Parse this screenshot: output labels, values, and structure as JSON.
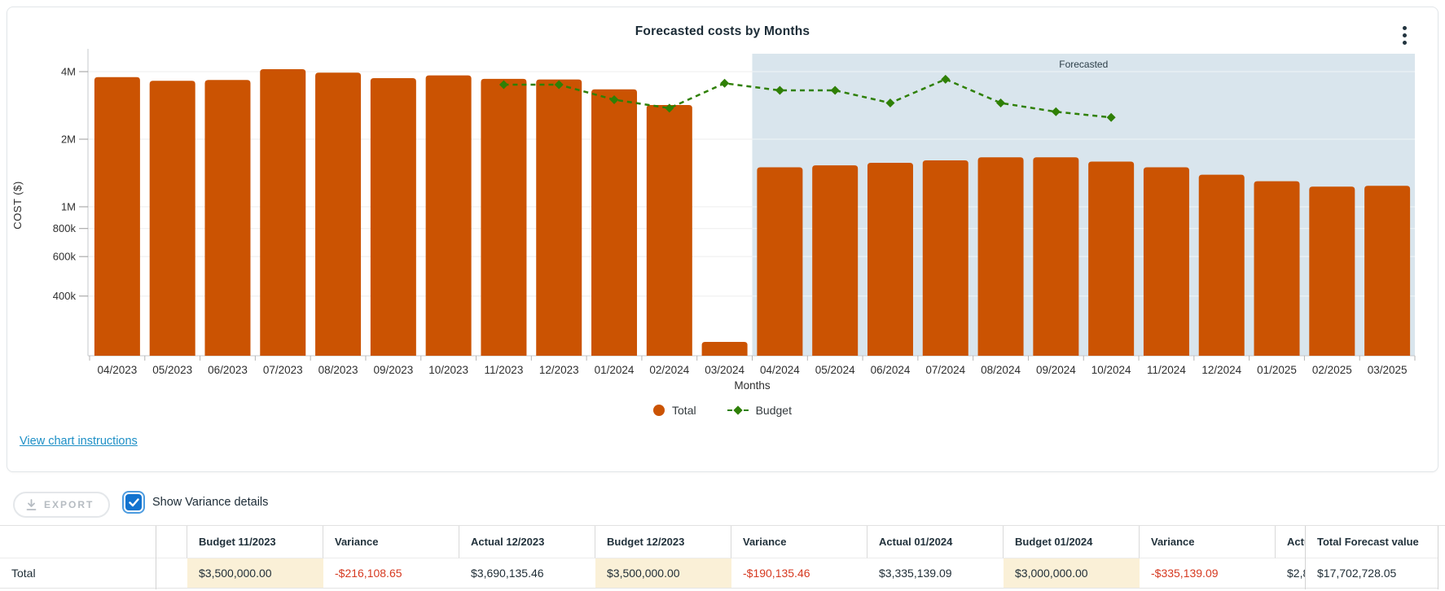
{
  "chart": {
    "title": "Forecasted costs by Months",
    "menu_icon": "kebab-menu",
    "link_label": "View chart instructions"
  },
  "chart_data": {
    "type": "bar",
    "title": "Forecasted costs by Months",
    "xlabel": "Months",
    "ylabel": "COST ($)",
    "y_scale": "log",
    "ylim": [
      216000,
      5000000
    ],
    "grid": true,
    "legend_position": "bottom",
    "y_ticks": [
      {
        "v": 4000000,
        "label": "4M"
      },
      {
        "v": 2000000,
        "label": "2M"
      },
      {
        "v": 1000000,
        "label": "1M"
      },
      {
        "v": 800000,
        "label": "800k"
      },
      {
        "v": 600000,
        "label": "600k"
      },
      {
        "v": 400000,
        "label": "400k"
      }
    ],
    "categories": [
      "04/2023",
      "05/2023",
      "06/2023",
      "07/2023",
      "08/2023",
      "09/2023",
      "10/2023",
      "11/2023",
      "12/2023",
      "01/2024",
      "02/2024",
      "03/2024",
      "04/2024",
      "05/2024",
      "06/2024",
      "07/2024",
      "08/2024",
      "09/2024",
      "10/2024",
      "11/2024",
      "12/2024",
      "01/2025",
      "02/2025",
      "03/2025"
    ],
    "series": [
      {
        "name": "Total",
        "type": "bar",
        "color": "#cb5302",
        "values": [
          3780000,
          3640000,
          3670000,
          4100000,
          3960000,
          3740000,
          3850000,
          3716109,
          3690135,
          3335139,
          2840000,
          250000,
          1500000,
          1530000,
          1570000,
          1610000,
          1660000,
          1660000,
          1590000,
          1500000,
          1390000,
          1300000,
          1230000,
          1240000
        ]
      },
      {
        "name": "Budget",
        "type": "line",
        "dashed": true,
        "color": "#2f8006",
        "values": [
          null,
          null,
          null,
          null,
          null,
          null,
          null,
          3500000,
          3500000,
          3000000,
          2750000,
          3550000,
          3300000,
          3300000,
          2900000,
          3700000,
          2900000,
          2650000,
          2500000,
          null,
          null,
          null,
          null,
          null
        ]
      }
    ],
    "forecast_region": {
      "label": "Forecasted",
      "start_category": "04/2024",
      "fill": "#d9e5ed"
    }
  },
  "toolbar": {
    "export_label": "EXPORT",
    "export_icon": "download-icon",
    "variance_checkbox": {
      "label": "Show Variance details",
      "checked": true
    }
  },
  "table": {
    "row_header": "Total",
    "columns": [
      {
        "header": "Budget 11/2023",
        "value": "$3,500,000.00",
        "style": "budget"
      },
      {
        "header": "Variance",
        "value": "-$216,108.65",
        "style": "variance"
      },
      {
        "header": "Actual 12/2023",
        "value": "$3,690,135.46",
        "style": "actual"
      },
      {
        "header": "Budget 12/2023",
        "value": "$3,500,000.00",
        "style": "budget"
      },
      {
        "header": "Variance",
        "value": "-$190,135.46",
        "style": "variance"
      },
      {
        "header": "Actual 01/2024",
        "value": "$3,335,139.09",
        "style": "actual"
      },
      {
        "header": "Budget 01/2024",
        "value": "$3,000,000.00",
        "style": "budget"
      },
      {
        "header": "Variance",
        "value": "-$335,139.09",
        "style": "variance"
      },
      {
        "header": "Actu",
        "value": "$2,8",
        "style": "actual",
        "truncated": true
      }
    ],
    "pinned_column": {
      "header": "Total Forecast value",
      "value": "$17,702,728.05"
    }
  },
  "colors": {
    "bar": "#cb5302",
    "budget_line": "#2f8006",
    "forecast_region_fill": "#d9e5ed",
    "variance_negative": "#d63a21",
    "budget_cell_background": "#faf0d7",
    "link": "#1d8fc6",
    "checkbox": "#1273cf"
  }
}
